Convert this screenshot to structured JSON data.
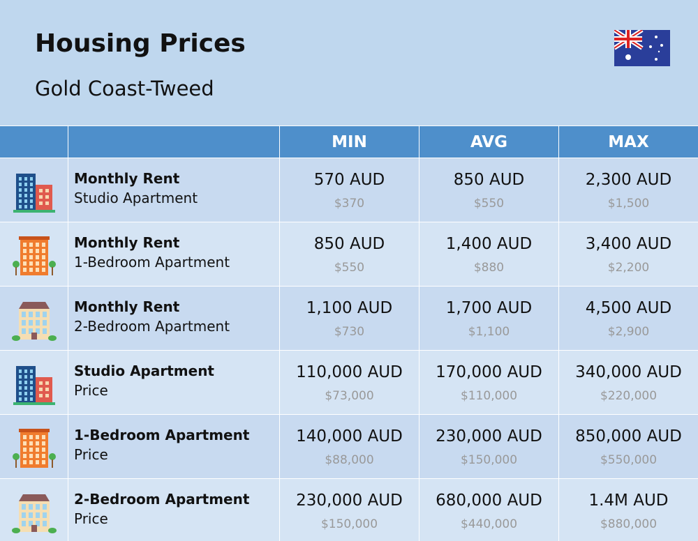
{
  "header": {
    "title": "Housing Prices",
    "subtitle": "Gold Coast-Tweed"
  },
  "table": {
    "columns": [
      "MIN",
      "AVG",
      "MAX"
    ],
    "rows": [
      {
        "label": "Monthly Rent",
        "sublabel": "Studio Apartment",
        "cells": [
          {
            "local": "570 AUD",
            "usd": "$370"
          },
          {
            "local": "850 AUD",
            "usd": "$550"
          },
          {
            "local": "2,300 AUD",
            "usd": "$1,500"
          }
        ]
      },
      {
        "label": "Monthly Rent",
        "sublabel": "1-Bedroom Apartment",
        "cells": [
          {
            "local": "850 AUD",
            "usd": "$550"
          },
          {
            "local": "1,400 AUD",
            "usd": "$880"
          },
          {
            "local": "3,400 AUD",
            "usd": "$2,200"
          }
        ]
      },
      {
        "label": "Monthly Rent",
        "sublabel": "2-Bedroom Apartment",
        "cells": [
          {
            "local": "1,100 AUD",
            "usd": "$730"
          },
          {
            "local": "1,700 AUD",
            "usd": "$1,100"
          },
          {
            "local": "4,500 AUD",
            "usd": "$2,900"
          }
        ]
      },
      {
        "label": "Studio Apartment",
        "sublabel": "Price",
        "cells": [
          {
            "local": "110,000 AUD",
            "usd": "$73,000"
          },
          {
            "local": "170,000 AUD",
            "usd": "$110,000"
          },
          {
            "local": "340,000 AUD",
            "usd": "$220,000"
          }
        ]
      },
      {
        "label": "1-Bedroom Apartment",
        "sublabel": "Price",
        "cells": [
          {
            "local": "140,000 AUD",
            "usd": "$88,000"
          },
          {
            "local": "230,000 AUD",
            "usd": "$150,000"
          },
          {
            "local": "850,000 AUD",
            "usd": "$550,000"
          }
        ]
      },
      {
        "label": "2-Bedroom Apartment",
        "sublabel": "Price",
        "cells": [
          {
            "local": "230,000 AUD",
            "usd": "$150,000"
          },
          {
            "local": "680,000 AUD",
            "usd": "$440,000"
          },
          {
            "local": "1.4M AUD",
            "usd": "$880,000"
          }
        ]
      }
    ]
  }
}
